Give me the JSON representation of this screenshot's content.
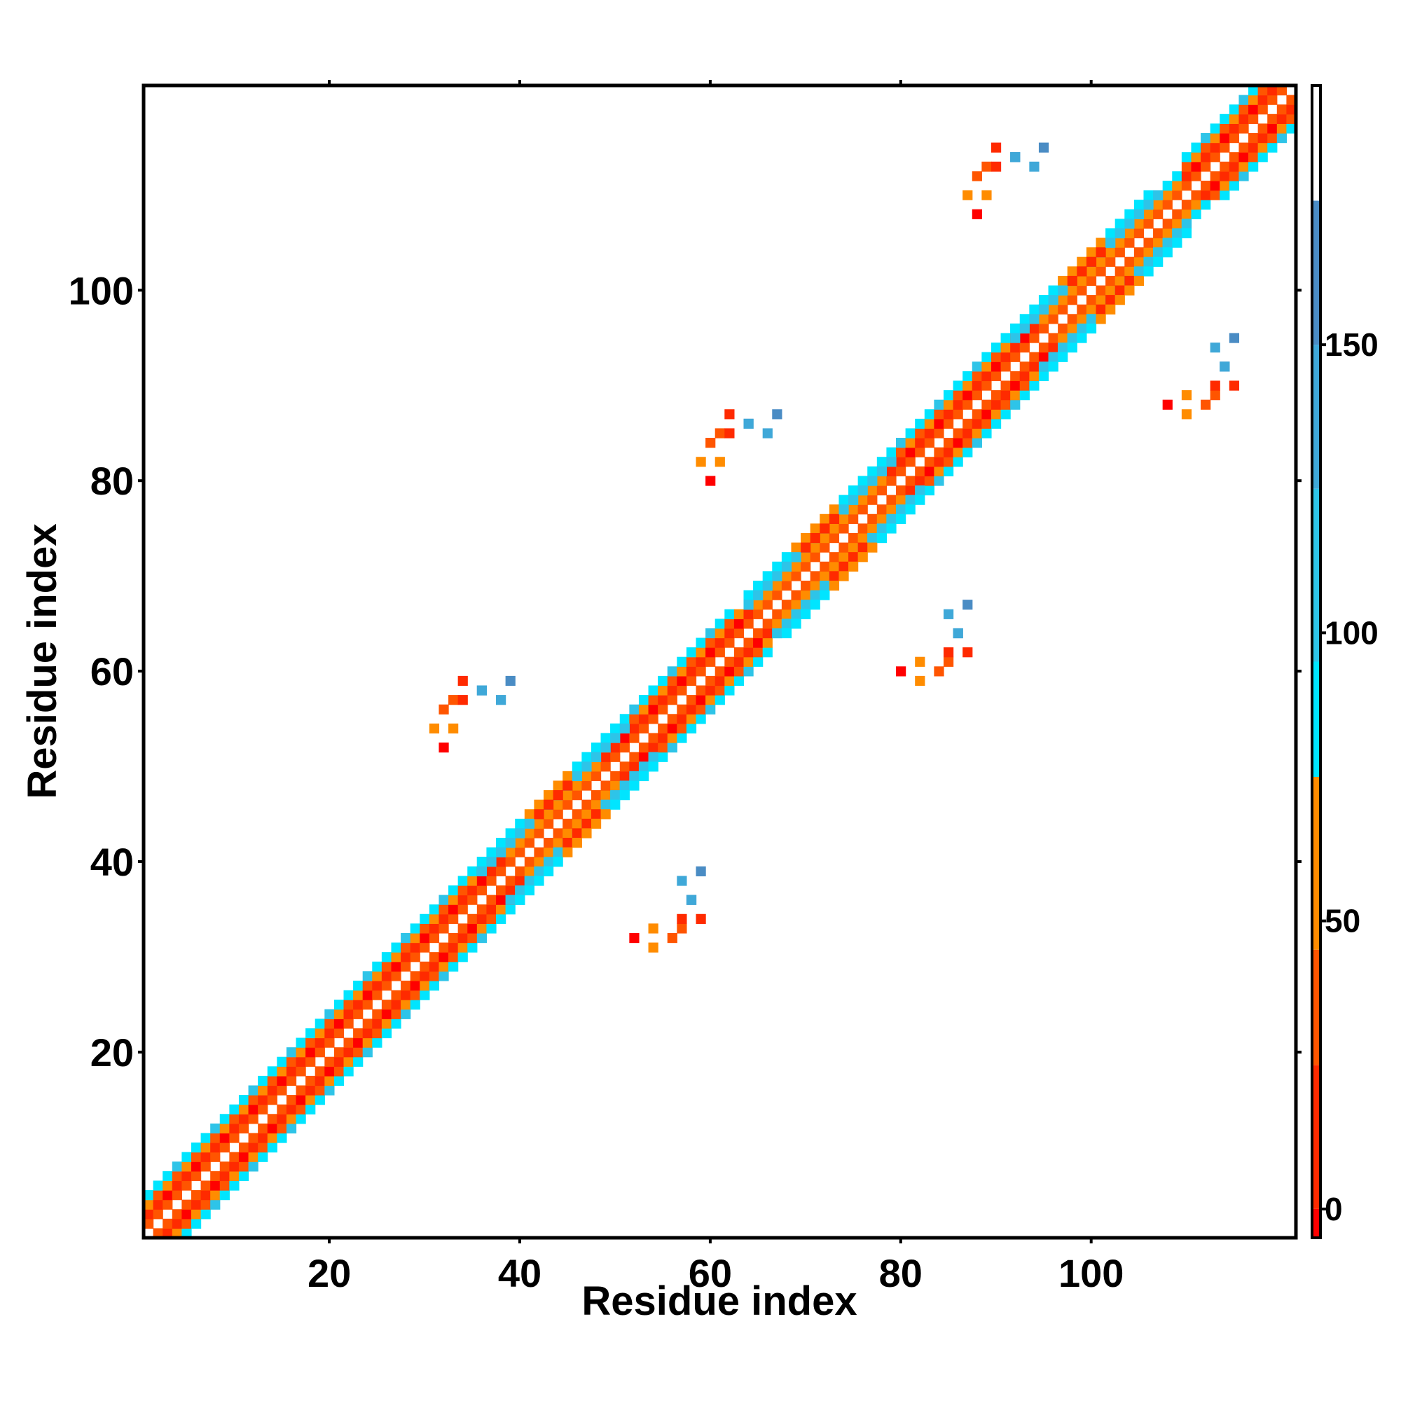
{
  "chart_data": {
    "type": "heatmap",
    "title": "",
    "xlabel": "Residue index",
    "ylabel": "Residue index",
    "xlim": [
      1,
      121
    ],
    "ylim": [
      1,
      121
    ],
    "x_ticks": [
      20,
      40,
      60,
      80,
      100
    ],
    "y_ticks": [
      20,
      40,
      60,
      80,
      100
    ],
    "colorbar": {
      "range": [
        -5,
        195
      ],
      "ticks": [
        0,
        50,
        100,
        150
      ],
      "bands": [
        {
          "from": -5,
          "to": 0,
          "color": "#ff0000"
        },
        {
          "from": 0,
          "to": 25,
          "color": "#ff2a00"
        },
        {
          "from": 25,
          "to": 45,
          "color": "#ff5500"
        },
        {
          "from": 45,
          "to": 75,
          "color": "#ff8c00"
        },
        {
          "from": 75,
          "to": 95,
          "color": "#00e5ff"
        },
        {
          "from": 95,
          "to": 125,
          "color": "#2ec4e8"
        },
        {
          "from": 125,
          "to": 150,
          "color": "#3fa8d8"
        },
        {
          "from": 150,
          "to": 175,
          "color": "#4a8cc4"
        },
        {
          "from": 175,
          "to": 195,
          "color": "#ffffff"
        }
      ]
    },
    "colors": {
      "red": "#ff0000",
      "red_orange": "#ff2a00",
      "orange": "#ff5500",
      "dark_orange": "#ff8c00",
      "cyan": "#00e5ff",
      "light_blue": "#2ec4e8",
      "mid_blue": "#3fa8d8",
      "steel_blue": "#4a8cc4",
      "background": "#ffffff"
    },
    "helix_segments": [
      [
        1,
        40
      ],
      [
        49,
        66
      ],
      [
        79,
        96
      ],
      [
        110,
        121
      ]
    ],
    "crossing_centers": [
      [
        45,
        45
      ],
      [
        73,
        73
      ],
      [
        101,
        101
      ]
    ],
    "note_cells_symmetric": true
  }
}
